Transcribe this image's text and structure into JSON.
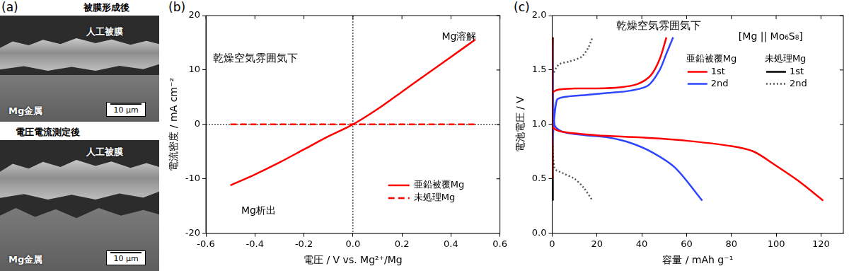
{
  "panel_a": {
    "label": "(a)",
    "top": {
      "caption": "被膜形成後",
      "film": "人工被膜",
      "metal": "Mg金属",
      "scale": "10 μm"
    },
    "transition": "電圧電流測定後",
    "bottom": {
      "film": "人工被膜",
      "metal": "Mg金属",
      "scale": "10 μm"
    }
  },
  "chart_data": [
    {
      "panel": "(b)",
      "type": "line",
      "title": "乾燥空気雰囲気下",
      "x_label": "電圧 / V vs. Mg²⁺/Mg",
      "y_label": "電流密度 / mA cm⁻²",
      "annotations": [
        "Mg溶解",
        "Mg析出"
      ],
      "x": [
        -0.5,
        -0.4,
        -0.3,
        -0.2,
        -0.1,
        0.0,
        0.1,
        0.2,
        0.3,
        0.4,
        0.5
      ],
      "series": [
        {
          "name": "亜鉛被覆Mg",
          "color": "#ff0000",
          "line_style": "solid",
          "values": [
            -11.2,
            -9.2,
            -7.0,
            -4.6,
            -2.2,
            0.0,
            2.8,
            6.0,
            9.2,
            12.4,
            15.6
          ]
        },
        {
          "name": "未処理Mg",
          "color": "#ff0000",
          "line_style": "dashed",
          "values": [
            0,
            0,
            0,
            0,
            0,
            0,
            0,
            0,
            0,
            0,
            0
          ]
        }
      ],
      "xlim": [
        -0.6,
        0.6
      ],
      "xticks": [
        -0.6,
        -0.4,
        -0.2,
        {
          "value": 0,
          "label": "0.0"
        },
        0.2,
        0.4,
        0.6
      ],
      "ylim": [
        -20,
        20
      ],
      "yticks": [
        -20,
        -10,
        0,
        10,
        20
      ],
      "reference_lines": [
        {
          "axis": "x",
          "value": 0
        },
        {
          "axis": "y",
          "value": 0
        }
      ],
      "grid": false,
      "legend": "lower right"
    },
    {
      "panel": "(c)",
      "type": "line",
      "title": "乾燥空気雰囲気下",
      "x_label": "容量 / mAh g⁻¹",
      "y_label": "電池電圧 / V",
      "annotations": [
        "[Mg || Mo₆S₈]"
      ],
      "series": [
        {
          "name": "1st",
          "group": "亜鉛被覆Mg",
          "color": "#ff0000",
          "line_style": "solid",
          "x": [
            0,
            0,
            1,
            5,
            20,
            40,
            60,
            80,
            90,
            100,
            110,
            121,
            null,
            0,
            0,
            3,
            10,
            20,
            30,
            38,
            44,
            48,
            51
          ],
          "values": [
            1.8,
            1.0,
            0.96,
            0.93,
            0.9,
            0.88,
            0.85,
            0.8,
            0.75,
            0.62,
            0.48,
            0.3,
            null,
            0.5,
            1.28,
            1.32,
            1.33,
            1.33,
            1.34,
            1.37,
            1.45,
            1.6,
            1.8
          ]
        },
        {
          "name": "2nd",
          "group": "亜鉛被覆Mg",
          "color": "#2f46ff",
          "line_style": "solid",
          "x": [
            0,
            1,
            5,
            15,
            25,
            35,
            45,
            55,
            67,
            null,
            0,
            2,
            5,
            15,
            25,
            35,
            43,
            48,
            51,
            54
          ],
          "values": [
            1.75,
            1.0,
            0.93,
            0.9,
            0.88,
            0.83,
            0.74,
            0.6,
            0.3,
            null,
            0.8,
            1.22,
            1.25,
            1.27,
            1.29,
            1.31,
            1.36,
            1.5,
            1.65,
            1.8
          ]
        },
        {
          "name": "1st",
          "group": "未処理Mg",
          "color": "#000000",
          "line_style": "solid",
          "x": [
            0.2,
            0.3,
            null,
            0.2,
            0.3
          ],
          "values": [
            1.8,
            0.3,
            null,
            0.3,
            1.8
          ]
        },
        {
          "name": "2nd",
          "group": "未処理Mg",
          "color": "#555555",
          "line_style": "dotted",
          "x": [
            0,
            1,
            5,
            10,
            14,
            18,
            null,
            0,
            3,
            8,
            13,
            16,
            18
          ],
          "values": [
            1.0,
            0.6,
            0.55,
            0.5,
            0.42,
            0.3,
            null,
            1.45,
            1.55,
            1.58,
            1.62,
            1.7,
            1.8
          ]
        }
      ],
      "xlim": [
        0,
        130
      ],
      "xticks": [
        0,
        20,
        40,
        60,
        80,
        100,
        120
      ],
      "ylim": [
        0,
        2.0
      ],
      "yticks": [
        {
          "value": 0,
          "label": "0.0"
        },
        0.5,
        {
          "value": 1,
          "label": "1.0"
        },
        1.5,
        {
          "value": 2,
          "label": "2.0"
        }
      ],
      "grid": false,
      "legend": "upper right"
    }
  ]
}
